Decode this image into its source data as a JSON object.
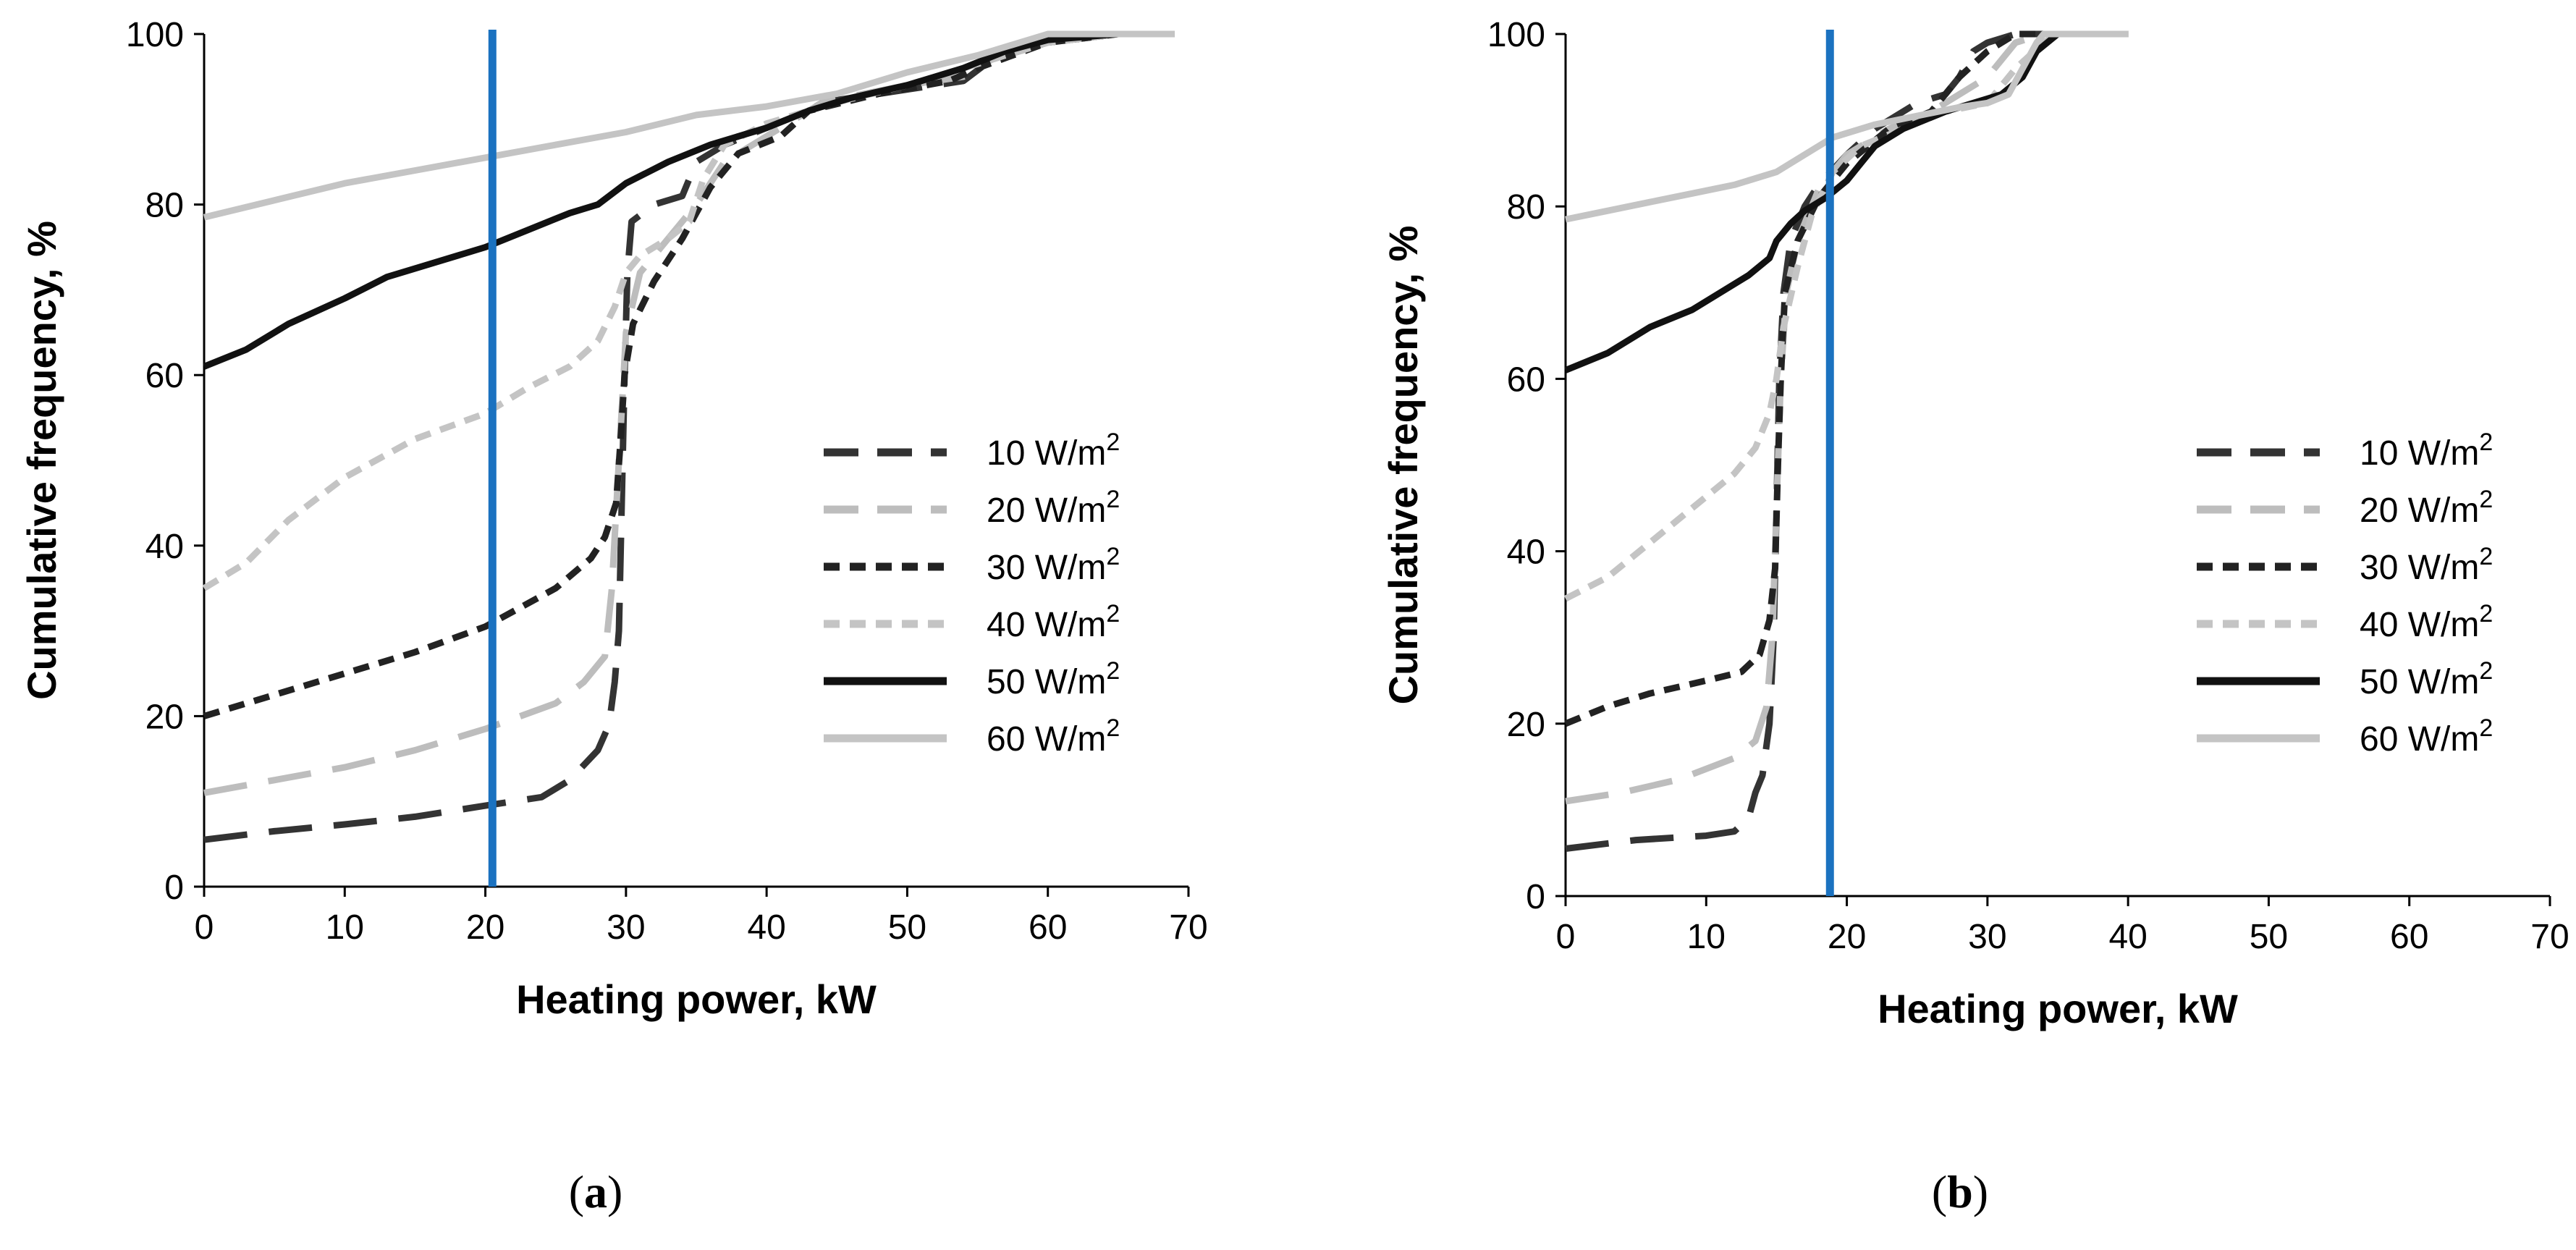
{
  "figure": {
    "legend_unit_suffix": "W/m",
    "legend_unit_superscript": "2"
  },
  "series_styles": [
    {
      "name": "10 W/m2",
      "label_value": "10",
      "color": "#333333",
      "dash": "long-dash"
    },
    {
      "name": "20 W/m2",
      "label_value": "20",
      "color": "#bdbdbd",
      "dash": "long-dash"
    },
    {
      "name": "30 W/m2",
      "label_value": "30",
      "color": "#222222",
      "dash": "short-dash"
    },
    {
      "name": "40 W/m2",
      "label_value": "40",
      "color": "#c4c4c4",
      "dash": "short-dash"
    },
    {
      "name": "50 W/m2",
      "label_value": "50",
      "color": "#111111",
      "dash": "solid"
    },
    {
      "name": "60 W/m2",
      "label_value": "60",
      "color": "#c4c4c4",
      "dash": "solid"
    }
  ],
  "reference_line_color": "#1b72c0",
  "chart_data": [
    {
      "type": "line",
      "panel_label": "a",
      "xlabel": "Heating power, kW",
      "ylabel": "Cumulative frequency, %",
      "xlim": [
        0,
        70
      ],
      "ylim": [
        0,
        100
      ],
      "xticks": [
        0,
        10,
        20,
        30,
        40,
        50,
        60,
        70
      ],
      "yticks": [
        0,
        20,
        40,
        60,
        80,
        100
      ],
      "legend": "right",
      "reference_line_x": 20.5,
      "series": [
        {
          "name": "10 W/m2",
          "points": [
            [
              0,
              5.5
            ],
            [
              5,
              6.5
            ],
            [
              10,
              7.3
            ],
            [
              15,
              8.2
            ],
            [
              20,
              9.5
            ],
            [
              24,
              10.5
            ],
            [
              26,
              12.5
            ],
            [
              28,
              16
            ],
            [
              28.8,
              19
            ],
            [
              29.2,
              24
            ],
            [
              29.5,
              30
            ],
            [
              29.7,
              45
            ],
            [
              29.9,
              60
            ],
            [
              30.1,
              72
            ],
            [
              30.4,
              78
            ],
            [
              32,
              80
            ],
            [
              34,
              81
            ],
            [
              35,
              85
            ],
            [
              37,
              87
            ],
            [
              40,
              89
            ],
            [
              43,
              91
            ],
            [
              44,
              92
            ],
            [
              48,
              93
            ],
            [
              52,
              94
            ],
            [
              54,
              94.5
            ],
            [
              56,
              97
            ],
            [
              60,
              99
            ],
            [
              65,
              100
            ],
            [
              69,
              100
            ]
          ]
        },
        {
          "name": "20 W/m2",
          "points": [
            [
              0,
              11
            ],
            [
              5,
              12.5
            ],
            [
              10,
              14
            ],
            [
              15,
              16
            ],
            [
              20,
              18.5
            ],
            [
              25,
              21.5
            ],
            [
              27,
              24
            ],
            [
              28.5,
              27
            ],
            [
              29,
              35
            ],
            [
              29.5,
              50
            ],
            [
              30,
              65
            ],
            [
              31,
              72
            ],
            [
              33,
              76
            ],
            [
              35,
              80
            ],
            [
              37,
              85
            ],
            [
              40,
              88
            ],
            [
              44,
              92
            ],
            [
              50,
              94
            ],
            [
              54,
              95
            ],
            [
              56,
              97
            ],
            [
              60,
              99
            ],
            [
              65,
              100
            ],
            [
              69,
              100
            ]
          ]
        },
        {
          "name": "30 W/m2",
          "points": [
            [
              0,
              20
            ],
            [
              5,
              22.5
            ],
            [
              10,
              25
            ],
            [
              15,
              27.5
            ],
            [
              20,
              30.5
            ],
            [
              25,
              35
            ],
            [
              27.5,
              38.5
            ],
            [
              28.5,
              41
            ],
            [
              29.3,
              45
            ],
            [
              29.6,
              52
            ],
            [
              29.9,
              60
            ],
            [
              30.5,
              66
            ],
            [
              32,
              71
            ],
            [
              34,
              76
            ],
            [
              36,
              82
            ],
            [
              38,
              86
            ],
            [
              41,
              88
            ],
            [
              43,
              91
            ],
            [
              48,
              93
            ],
            [
              53,
              94.5
            ],
            [
              55,
              96
            ],
            [
              60,
              99
            ],
            [
              65,
              100
            ],
            [
              69,
              100
            ]
          ]
        },
        {
          "name": "40 W/m2",
          "points": [
            [
              0,
              35
            ],
            [
              3,
              38
            ],
            [
              6,
              43
            ],
            [
              10,
              48
            ],
            [
              15,
              52.5
            ],
            [
              20,
              55.5
            ],
            [
              23,
              58.5
            ],
            [
              26,
              61
            ],
            [
              28,
              64
            ],
            [
              29.2,
              68
            ],
            [
              30,
              72
            ],
            [
              31,
              74
            ],
            [
              33,
              76
            ],
            [
              34.5,
              78
            ],
            [
              35.5,
              83
            ],
            [
              37,
              87
            ],
            [
              40,
              89.5
            ],
            [
              45,
              92
            ],
            [
              50,
              94
            ],
            [
              56,
              97
            ],
            [
              60,
              99
            ],
            [
              65,
              100
            ],
            [
              69,
              100
            ]
          ]
        },
        {
          "name": "50 W/m2",
          "points": [
            [
              0,
              61
            ],
            [
              3,
              63
            ],
            [
              6,
              66
            ],
            [
              10,
              69
            ],
            [
              13,
              71.5
            ],
            [
              16,
              73
            ],
            [
              20,
              75
            ],
            [
              23,
              77
            ],
            [
              26,
              79
            ],
            [
              28,
              80
            ],
            [
              30,
              82.5
            ],
            [
              33,
              85
            ],
            [
              36,
              87
            ],
            [
              40,
              89
            ],
            [
              43,
              91
            ],
            [
              46,
              92.5
            ],
            [
              50,
              94
            ],
            [
              54,
              96
            ],
            [
              57,
              98
            ],
            [
              60,
              99.3
            ],
            [
              65,
              100
            ],
            [
              69,
              100
            ]
          ]
        },
        {
          "name": "60 W/m2",
          "points": [
            [
              0,
              78.5
            ],
            [
              5,
              80.5
            ],
            [
              10,
              82.5
            ],
            [
              15,
              84
            ],
            [
              20,
              85.5
            ],
            [
              25,
              87
            ],
            [
              30,
              88.5
            ],
            [
              35,
              90.5
            ],
            [
              40,
              91.5
            ],
            [
              45,
              93
            ],
            [
              50,
              95.5
            ],
            [
              55,
              97.5
            ],
            [
              58,
              99
            ],
            [
              60,
              100
            ],
            [
              69,
              100
            ]
          ]
        }
      ]
    },
    {
      "type": "line",
      "panel_label": "b",
      "xlabel": "Heating power, kW",
      "ylabel": "Cumulative frequency, %",
      "xlim": [
        0,
        70
      ],
      "ylim": [
        0,
        100
      ],
      "xticks": [
        0,
        10,
        20,
        30,
        40,
        50,
        60,
        70
      ],
      "yticks": [
        0,
        20,
        40,
        60,
        80,
        100
      ],
      "legend": "right",
      "reference_line_x": 18.8,
      "series": [
        {
          "name": "10 W/m2",
          "points": [
            [
              0,
              5.5
            ],
            [
              5,
              6.5
            ],
            [
              10,
              7
            ],
            [
              12,
              7.5
            ],
            [
              13,
              9
            ],
            [
              13.5,
              12
            ],
            [
              14,
              14
            ],
            [
              14.5,
              20
            ],
            [
              14.8,
              30
            ],
            [
              15,
              45
            ],
            [
              15.2,
              60
            ],
            [
              15.5,
              70
            ],
            [
              16,
              76
            ],
            [
              17,
              80
            ],
            [
              18,
              82.5
            ],
            [
              20,
              86
            ],
            [
              22,
              89
            ],
            [
              25,
              92
            ],
            [
              27,
              93
            ],
            [
              28,
              95
            ],
            [
              29,
              98
            ],
            [
              30,
              99
            ],
            [
              32,
              100
            ],
            [
              34,
              100
            ],
            [
              40,
              100
            ]
          ]
        },
        {
          "name": "20 W/m2",
          "points": [
            [
              0,
              11
            ],
            [
              4,
              12
            ],
            [
              8,
              13.5
            ],
            [
              12,
              16
            ],
            [
              13.5,
              18
            ],
            [
              14.3,
              22
            ],
            [
              14.7,
              30
            ],
            [
              15,
              45
            ],
            [
              15.3,
              60
            ],
            [
              15.7,
              70
            ],
            [
              16.5,
              76
            ],
            [
              18,
              82
            ],
            [
              20,
              86
            ],
            [
              23,
              89
            ],
            [
              26,
              91
            ],
            [
              28,
              93
            ],
            [
              30,
              95
            ],
            [
              32,
              99
            ],
            [
              34,
              100
            ],
            [
              40,
              100
            ]
          ]
        },
        {
          "name": "30 W/m2",
          "points": [
            [
              0,
              20
            ],
            [
              3,
              22
            ],
            [
              6,
              23.5
            ],
            [
              10,
              25
            ],
            [
              12.5,
              26
            ],
            [
              13.8,
              28
            ],
            [
              14.5,
              32
            ],
            [
              14.9,
              38
            ],
            [
              15.1,
              50
            ],
            [
              15.3,
              60
            ],
            [
              15.6,
              70
            ],
            [
              16.5,
              76
            ],
            [
              18,
              81
            ],
            [
              20,
              85
            ],
            [
              23,
              89
            ],
            [
              26,
              91
            ],
            [
              28,
              95
            ],
            [
              30,
              98
            ],
            [
              32,
              100
            ],
            [
              40,
              100
            ]
          ]
        },
        {
          "name": "40 W/m2",
          "points": [
            [
              0,
              34.5
            ],
            [
              3,
              37
            ],
            [
              6,
              41
            ],
            [
              9,
              45
            ],
            [
              12,
              49
            ],
            [
              13.5,
              52
            ],
            [
              14.5,
              56
            ],
            [
              15,
              60
            ],
            [
              15.5,
              66
            ],
            [
              16.5,
              73
            ],
            [
              17.5,
              79
            ],
            [
              19,
              84
            ],
            [
              21,
              87
            ],
            [
              24,
              89
            ],
            [
              27,
              91
            ],
            [
              30,
              92
            ],
            [
              32,
              96
            ],
            [
              34,
              99
            ],
            [
              35,
              100
            ],
            [
              40,
              100
            ]
          ]
        },
        {
          "name": "50 W/m2",
          "points": [
            [
              0,
              61
            ],
            [
              3,
              63
            ],
            [
              6,
              66
            ],
            [
              9,
              68
            ],
            [
              11,
              70
            ],
            [
              13,
              72
            ],
            [
              14.5,
              74
            ],
            [
              15,
              76
            ],
            [
              16,
              78
            ],
            [
              17,
              79.5
            ],
            [
              18.5,
              81
            ],
            [
              20,
              83
            ],
            [
              21,
              85
            ],
            [
              22,
              87
            ],
            [
              24,
              89
            ],
            [
              27,
              91
            ],
            [
              29,
              92
            ],
            [
              31,
              93
            ],
            [
              32.5,
              95
            ],
            [
              33.5,
              98
            ],
            [
              35,
              100
            ],
            [
              40,
              100
            ]
          ]
        },
        {
          "name": "60 W/m2",
          "points": [
            [
              0,
              78.5
            ],
            [
              3,
              79.5
            ],
            [
              6,
              80.5
            ],
            [
              9,
              81.5
            ],
            [
              12,
              82.5
            ],
            [
              15,
              84
            ],
            [
              17,
              86
            ],
            [
              19,
              88
            ],
            [
              22,
              89.5
            ],
            [
              25,
              90.5
            ],
            [
              28,
              91.5
            ],
            [
              30,
              92
            ],
            [
              31.5,
              93
            ],
            [
              32.5,
              96
            ],
            [
              33.5,
              99
            ],
            [
              34,
              100
            ],
            [
              40,
              100
            ]
          ]
        }
      ]
    }
  ]
}
